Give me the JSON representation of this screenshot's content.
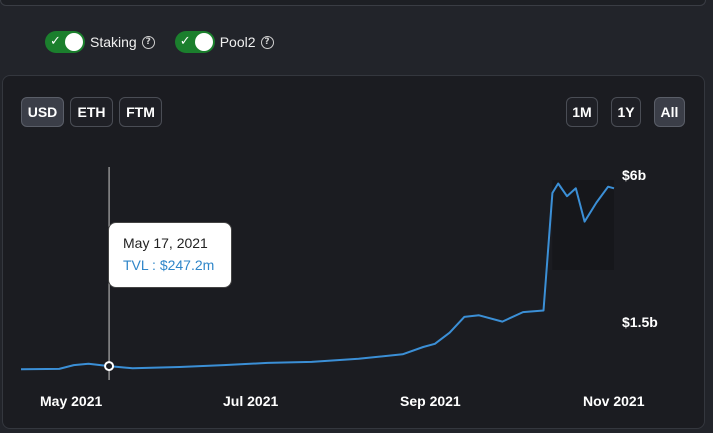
{
  "toggles": [
    {
      "label": "Staking",
      "on": true
    },
    {
      "label": "Pool2",
      "on": true
    }
  ],
  "currency_buttons": [
    {
      "label": "USD",
      "active": true
    },
    {
      "label": "ETH",
      "active": false
    },
    {
      "label": "FTM",
      "active": false
    }
  ],
  "range_buttons": [
    {
      "label": "1M",
      "active": false
    },
    {
      "label": "1Y",
      "active": false
    },
    {
      "label": "All",
      "active": true
    }
  ],
  "tooltip": {
    "date": "May 17, 2021",
    "value": "TVL : $247.2m"
  },
  "colors": {
    "line": "#3b8fd6",
    "toggle_on": "#1b7f2d",
    "tooltip_value": "#2f86c9"
  },
  "chart_data": {
    "type": "line",
    "title": "",
    "series": [
      {
        "values": [
          [
            "2021-04-17",
            0.15
          ],
          [
            "2021-04-30",
            0.16
          ],
          [
            "2021-05-05",
            0.28
          ],
          [
            "2021-05-10",
            0.32
          ],
          [
            "2021-05-17",
            0.25
          ],
          [
            "2021-05-25",
            0.18
          ],
          [
            "2021-06-10",
            0.22
          ],
          [
            "2021-06-25",
            0.28
          ],
          [
            "2021-07-10",
            0.35
          ],
          [
            "2021-07-25",
            0.38
          ],
          [
            "2021-08-10",
            0.48
          ],
          [
            "2021-08-25",
            0.62
          ],
          [
            "2021-09-01",
            0.85
          ],
          [
            "2021-09-05",
            0.95
          ],
          [
            "2021-09-10",
            1.3
          ],
          [
            "2021-09-15",
            1.8
          ],
          [
            "2021-09-20",
            1.85
          ],
          [
            "2021-09-28",
            1.65
          ],
          [
            "2021-10-05",
            1.95
          ],
          [
            "2021-10-12",
            2.0
          ],
          [
            "2021-10-15",
            5.7
          ],
          [
            "2021-10-17",
            6.0
          ],
          [
            "2021-10-20",
            5.6
          ],
          [
            "2021-10-23",
            5.85
          ],
          [
            "2021-10-26",
            4.8
          ],
          [
            "2021-10-30",
            5.4
          ],
          [
            "2021-11-03",
            5.9
          ],
          [
            "2021-11-05",
            5.85
          ]
        ]
      }
    ],
    "x_tick_labels": [
      "May 2021",
      "Jul 2021",
      "Sep 2021",
      "Nov 2021"
    ],
    "y_tick_labels": [
      "$6b",
      "$1.5b"
    ],
    "ylim": [
      0,
      6.3
    ],
    "highlighted_point": {
      "x": "2021-05-17",
      "y": 0.25
    }
  }
}
